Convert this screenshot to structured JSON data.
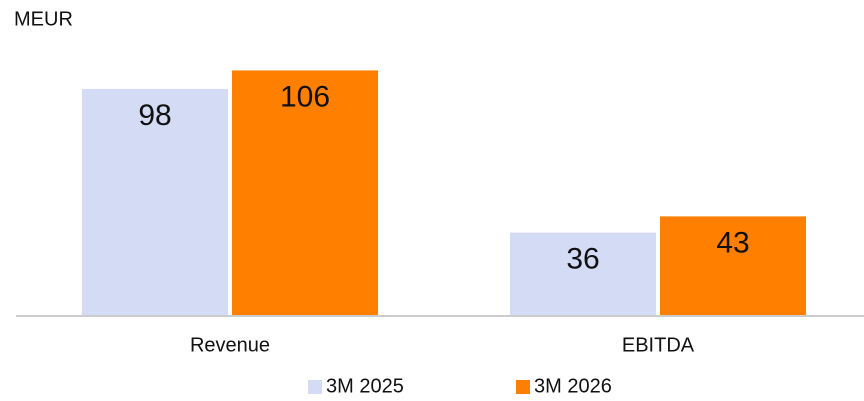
{
  "chart_data": {
    "type": "bar",
    "y_label": "MEUR",
    "categories": [
      "Revenue",
      "EBITDA"
    ],
    "series": [
      {
        "name": "3M 2025",
        "color": "#d3dbf5",
        "values": [
          98,
          36
        ]
      },
      {
        "name": "3M 2026",
        "color": "#ff7f00",
        "values": [
          106,
          43
        ]
      }
    ],
    "ylim": [
      0,
      120
    ]
  }
}
